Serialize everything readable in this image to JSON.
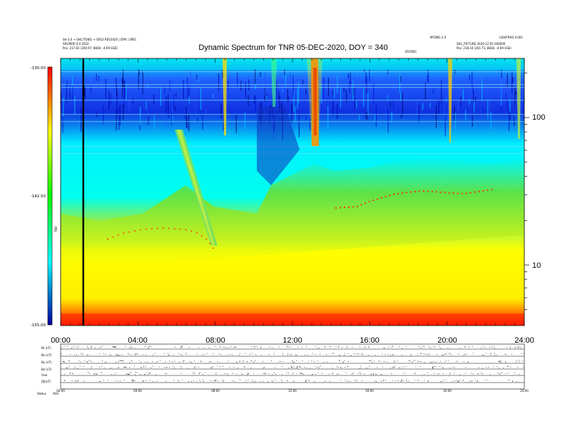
{
  "header": {
    "title": "Dynamic Spectrum for TNR 05-DEC-2020, DOY = 340",
    "top_left_line1": "SH 3.0 + SHC(TOKE) + SR10 REV2020 | DYN | SPEC",
    "top_left_line2": "ARGPERI 0.0 2022",
    "top_left_line3": "Pos:   217.83 (200.97, 8828, -4.69 GSE)",
    "top_right_line1": "MFDBG 2.0",
    "top_right_line2": "LOHIFREQ 0.001",
    "top_right_line3": "SEG_PICTURE 2020-12-05 000000",
    "top_right_line4": "Pos:   218.10 (201.73, 8828, -4.69 GSE)",
    "small_mark": "DSYDEC"
  },
  "chart_data": {
    "type": "heatmap",
    "title": "Dynamic Spectrum for TNR 05-DEC-2020, DOY = 340",
    "x_ticks": [
      "00:00",
      "04:00",
      "08:00",
      "12:00",
      "16:00",
      "20:00",
      "24:00"
    ],
    "y_ticks": [
      "100",
      "10"
    ],
    "y_scale": "log",
    "colorbar_ticks": [
      "-130.00",
      "-142.50",
      "-155.00"
    ],
    "colorbar_range": [
      -155.0,
      -130.0
    ],
    "colorbar_label": "TNR",
    "colormap": [
      "#7a0000",
      "#ff0000",
      "#ff8000",
      "#ffff00",
      "#80ff00",
      "#00ff00",
      "#00ffff",
      "#0080ff",
      "#0000ff",
      "#000080"
    ]
  },
  "panel": {
    "labels": [
      "Bt (nT)",
      "Bx (nT)",
      "By (nT)",
      "Bz (nT)",
      "Vsw",
      "|B|(nT)"
    ],
    "footer_label": "Status",
    "footer_value": "AVG",
    "mini_x_ticks": [
      "00:00",
      "04:00",
      "08:00",
      "12:00",
      "16:00",
      "20:00",
      "24:00"
    ]
  }
}
